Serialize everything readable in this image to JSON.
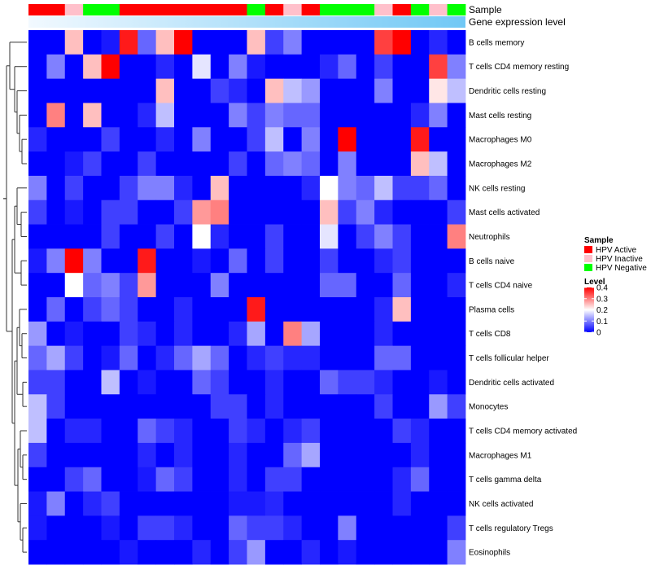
{
  "chart_data": {
    "type": "heatmap",
    "annotation_labels": {
      "sample": "Sample",
      "gene_expression_level": "Gene expression level"
    },
    "rows": [
      "B cells memory",
      "T cells CD4 memory resting",
      "Dendritic cells resting",
      "Mast cells resting",
      "Macrophages M0",
      "Macrophages M2",
      "NK cells resting",
      "Mast cells activated",
      "Neutrophils",
      "B cells naive",
      "T cells CD4 naive",
      "Plasma cells",
      "T cells CD8",
      "T cells follicular helper",
      "Dendritic cells activated",
      "Monocytes",
      "T cells CD4 memory activated",
      "Macrophages M1",
      "T cells gamma delta",
      "NK cells activated",
      "T cells regulatory  Tregs",
      "Eosinophils"
    ],
    "sample_groups": [
      "HPV Active",
      "HPV Active",
      "HPV Inactive",
      "HPV Negative",
      "HPV Negative",
      "HPV Active",
      "HPV Active",
      "HPV Active",
      "HPV Active",
      "HPV Active",
      "HPV Active",
      "HPV Active",
      "HPV Negative",
      "HPV Active",
      "HPV Inactive",
      "HPV Active",
      "HPV Negative",
      "HPV Negative",
      "HPV Negative",
      "HPV Inactive",
      "HPV Active",
      "HPV Negative",
      "HPV Inactive",
      "HPV Negative"
    ],
    "sample_colors": {
      "HPV Active": "#ff0000",
      "HPV Inactive": "#ffc0cb",
      "HPV Negative": "#00ff00"
    },
    "expression_gradient": [
      "#f2f9ff",
      "#70c8f5"
    ],
    "values": [
      [
        0.0,
        0.0,
        0.25,
        0.0,
        0.02,
        0.38,
        0.08,
        0.25,
        0.4,
        0.0,
        0.0,
        0.0,
        0.25,
        0.05,
        0.1,
        0.0,
        0.0,
        0.0,
        0.0,
        0.35,
        0.4,
        0.0,
        0.03,
        0.0
      ],
      [
        0.0,
        0.1,
        0.0,
        0.25,
        0.4,
        0.0,
        0.0,
        0.03,
        0.0,
        0.18,
        0.0,
        0.1,
        0.02,
        0.0,
        0.0,
        0.0,
        0.03,
        0.08,
        0.0,
        0.05,
        0.0,
        0.0,
        0.35,
        0.1
      ],
      [
        0.0,
        0.0,
        0.0,
        0.0,
        0.0,
        0.0,
        0.0,
        0.25,
        0.0,
        0.0,
        0.05,
        0.03,
        0.0,
        0.25,
        0.15,
        0.12,
        0.0,
        0.0,
        0.0,
        0.1,
        0.0,
        0.0,
        0.22,
        0.15
      ],
      [
        0.0,
        0.3,
        0.0,
        0.25,
        0.0,
        0.0,
        0.03,
        0.15,
        0.0,
        0.0,
        0.0,
        0.1,
        0.05,
        0.1,
        0.08,
        0.08,
        0.0,
        0.0,
        0.0,
        0.0,
        0.0,
        0.03,
        0.1,
        0.0
      ],
      [
        0.03,
        0.0,
        0.0,
        0.0,
        0.05,
        0.0,
        0.0,
        0.03,
        0.0,
        0.1,
        0.0,
        0.0,
        0.05,
        0.15,
        0.0,
        0.1,
        0.0,
        0.4,
        0.0,
        0.0,
        0.0,
        0.38,
        0.0,
        0.0
      ],
      [
        0.0,
        0.0,
        0.02,
        0.05,
        0.0,
        0.0,
        0.05,
        0.0,
        0.0,
        0.0,
        0.0,
        0.05,
        0.0,
        0.08,
        0.1,
        0.08,
        0.0,
        0.1,
        0.0,
        0.0,
        0.0,
        0.25,
        0.15,
        0.0
      ],
      [
        0.1,
        0.0,
        0.05,
        0.0,
        0.0,
        0.05,
        0.1,
        0.1,
        0.03,
        0.0,
        0.25,
        0.0,
        0.0,
        0.0,
        0.0,
        0.03,
        0.2,
        0.1,
        0.08,
        0.15,
        0.05,
        0.05,
        0.08,
        0.0
      ],
      [
        0.05,
        0.0,
        0.02,
        0.0,
        0.05,
        0.05,
        0.0,
        0.0,
        0.05,
        0.28,
        0.3,
        0.0,
        0.0,
        0.0,
        0.0,
        0.0,
        0.25,
        0.05,
        0.1,
        0.03,
        0.0,
        0.0,
        0.0,
        0.05
      ],
      [
        0.0,
        0.0,
        0.0,
        0.0,
        0.05,
        0.0,
        0.0,
        0.05,
        0.0,
        0.2,
        0.03,
        0.0,
        0.0,
        0.05,
        0.0,
        0.0,
        0.18,
        0.0,
        0.05,
        0.1,
        0.05,
        0.0,
        0.0,
        0.3
      ],
      [
        0.02,
        0.1,
        0.4,
        0.1,
        0.0,
        0.0,
        0.38,
        0.0,
        0.0,
        0.02,
        0.0,
        0.08,
        0.0,
        0.05,
        0.0,
        0.0,
        0.05,
        0.0,
        0.0,
        0.03,
        0.05,
        0.0,
        0.0,
        0.0
      ],
      [
        0.0,
        0.0,
        0.2,
        0.08,
        0.1,
        0.05,
        0.28,
        0.0,
        0.0,
        0.0,
        0.1,
        0.0,
        0.0,
        0.0,
        0.0,
        0.0,
        0.08,
        0.08,
        0.0,
        0.0,
        0.08,
        0.0,
        0.0,
        0.03
      ],
      [
        0.0,
        0.08,
        0.0,
        0.05,
        0.08,
        0.05,
        0.0,
        0.0,
        0.03,
        0.0,
        0.0,
        0.0,
        0.38,
        0.0,
        0.0,
        0.0,
        0.0,
        0.0,
        0.0,
        0.03,
        0.25,
        0.0,
        0.0,
        0.0
      ],
      [
        0.12,
        0.0,
        0.02,
        0.0,
        0.0,
        0.05,
        0.03,
        0.0,
        0.03,
        0.0,
        0.0,
        0.03,
        0.13,
        0.0,
        0.3,
        0.13,
        0.0,
        0.0,
        0.0,
        0.03,
        0.0,
        0.0,
        0.0,
        0.0
      ],
      [
        0.08,
        0.13,
        0.05,
        0.0,
        0.02,
        0.08,
        0.0,
        0.03,
        0.08,
        0.13,
        0.08,
        0.0,
        0.03,
        0.05,
        0.03,
        0.03,
        0.0,
        0.0,
        0.0,
        0.08,
        0.08,
        0.0,
        0.0,
        0.0
      ],
      [
        0.05,
        0.05,
        0.0,
        0.0,
        0.15,
        0.0,
        0.02,
        0.0,
        0.0,
        0.08,
        0.05,
        0.0,
        0.0,
        0.03,
        0.0,
        0.0,
        0.08,
        0.05,
        0.05,
        0.03,
        0.0,
        0.0,
        0.02,
        0.0
      ],
      [
        0.15,
        0.05,
        0.0,
        0.0,
        0.0,
        0.0,
        0.0,
        0.0,
        0.0,
        0.0,
        0.05,
        0.05,
        0.0,
        0.03,
        0.0,
        0.0,
        0.0,
        0.0,
        0.0,
        0.05,
        0.0,
        0.0,
        0.12,
        0.05
      ],
      [
        0.15,
        0.0,
        0.03,
        0.03,
        0.0,
        0.0,
        0.08,
        0.05,
        0.03,
        0.0,
        0.0,
        0.05,
        0.03,
        0.0,
        0.03,
        0.05,
        0.0,
        0.0,
        0.0,
        0.0,
        0.05,
        0.03,
        0.0,
        0.0
      ],
      [
        0.05,
        0.0,
        0.0,
        0.0,
        0.0,
        0.0,
        0.03,
        0.0,
        0.03,
        0.0,
        0.0,
        0.03,
        0.0,
        0.0,
        0.08,
        0.13,
        0.0,
        0.0,
        0.0,
        0.0,
        0.0,
        0.03,
        0.0,
        0.0
      ],
      [
        0.0,
        0.0,
        0.05,
        0.08,
        0.0,
        0.0,
        0.02,
        0.08,
        0.05,
        0.0,
        0.0,
        0.03,
        0.0,
        0.05,
        0.05,
        0.0,
        0.0,
        0.0,
        0.0,
        0.0,
        0.03,
        0.08,
        0.0,
        0.0
      ],
      [
        0.02,
        0.1,
        0.0,
        0.03,
        0.05,
        0.0,
        0.0,
        0.0,
        0.0,
        0.0,
        0.0,
        0.02,
        0.02,
        0.03,
        0.0,
        0.0,
        0.0,
        0.0,
        0.0,
        0.0,
        0.03,
        0.0,
        0.0,
        0.0
      ],
      [
        0.02,
        0.0,
        0.0,
        0.0,
        0.02,
        0.0,
        0.05,
        0.05,
        0.03,
        0.0,
        0.0,
        0.08,
        0.05,
        0.05,
        0.03,
        0.0,
        0.0,
        0.1,
        0.0,
        0.0,
        0.0,
        0.0,
        0.0,
        0.05
      ],
      [
        0.0,
        0.0,
        0.0,
        0.0,
        0.0,
        0.02,
        0.0,
        0.0,
        0.0,
        0.03,
        0.0,
        0.05,
        0.12,
        0.0,
        0.0,
        0.03,
        0.0,
        0.02,
        0.0,
        0.0,
        0.0,
        0.0,
        0.0,
        0.1
      ]
    ],
    "legend": {
      "sample_title": "Sample",
      "sample_entries": [
        "HPV Active",
        "HPV Inactive",
        "HPV Negative"
      ],
      "level_title": "Level",
      "level_ticks": [
        "0.4",
        "0.3",
        "0.2",
        "0.1",
        "0"
      ],
      "level_range": [
        0,
        0.4
      ],
      "level_colors": [
        "#0000ff",
        "#ffffff",
        "#ff0000"
      ]
    }
  }
}
